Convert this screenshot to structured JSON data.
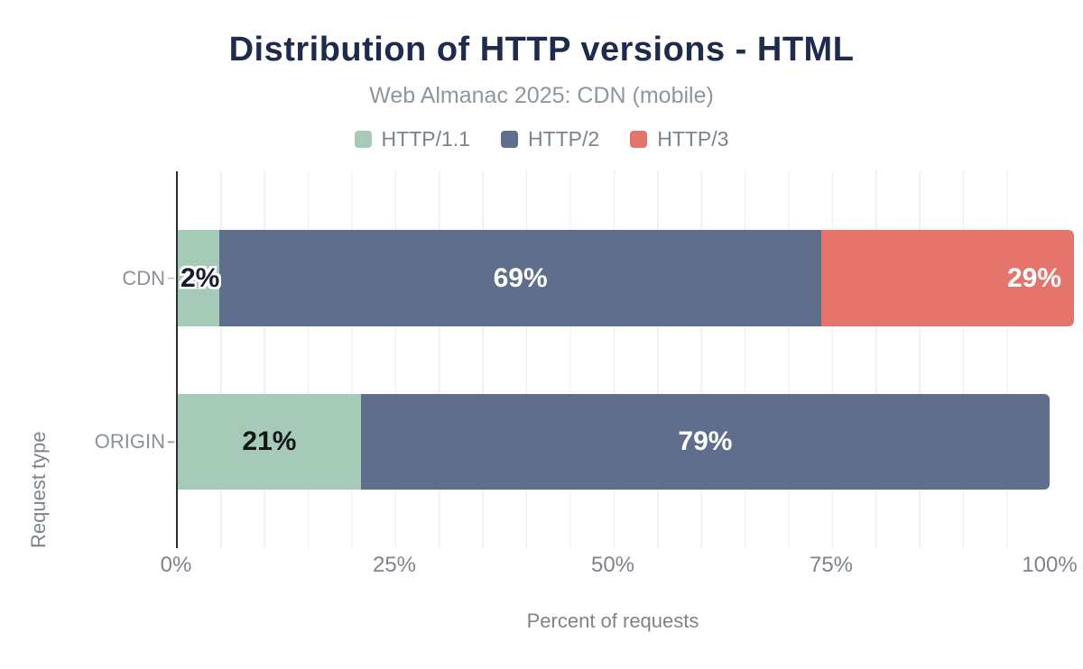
{
  "header": {
    "title": "Distribution of HTTP versions - HTML",
    "subtitle": "Web Almanac 2025: CDN (mobile)"
  },
  "legend": [
    {
      "label": "HTTP/1.1",
      "color": "#a5cab8"
    },
    {
      "label": "HTTP/2",
      "color": "#5f6e8c"
    },
    {
      "label": "HTTP/3",
      "color": "#e5756c"
    }
  ],
  "chart_data": {
    "type": "bar",
    "orientation": "horizontal",
    "stacked": true,
    "title": "Distribution of HTTP versions - HTML",
    "subtitle": "Web Almanac 2025: CDN (mobile)",
    "xlabel": "Percent of requests",
    "ylabel": "Request type",
    "xlim": [
      0,
      100
    ],
    "xticks": [
      "0%",
      "25%",
      "50%",
      "75%",
      "100%"
    ],
    "xtick_positions": [
      0,
      25,
      50,
      75,
      100
    ],
    "grid": "light vertical gridlines every 5%",
    "legend_position": "top-center",
    "categories": [
      "CDN",
      "ORIGIN"
    ],
    "series": [
      {
        "name": "HTTP/1.1",
        "color": "#a5cab8",
        "values": [
          2,
          21
        ]
      },
      {
        "name": "HTTP/2",
        "color": "#5f6e8c",
        "values": [
          69,
          79
        ]
      },
      {
        "name": "HTTP/3",
        "color": "#e5756c",
        "values": [
          29,
          0
        ]
      }
    ],
    "bars": [
      {
        "category": "CDN",
        "segments": [
          {
            "series": "HTTP/1.1",
            "value": 2,
            "label": "2%",
            "label_style": "dark-outline",
            "label_align": "start"
          },
          {
            "series": "HTTP/2",
            "value": 69,
            "label": "69%",
            "label_style": "light",
            "label_align": "center"
          },
          {
            "series": "HTTP/3",
            "value": 29,
            "label": "29%",
            "label_style": "light",
            "label_align": "end"
          }
        ]
      },
      {
        "category": "ORIGIN",
        "segments": [
          {
            "series": "HTTP/1.1",
            "value": 21,
            "label": "21%",
            "label_style": "dark",
            "label_align": "center"
          },
          {
            "series": "HTTP/2",
            "value": 79,
            "label": "79%",
            "label_style": "light",
            "label_align": "center"
          }
        ]
      }
    ]
  }
}
